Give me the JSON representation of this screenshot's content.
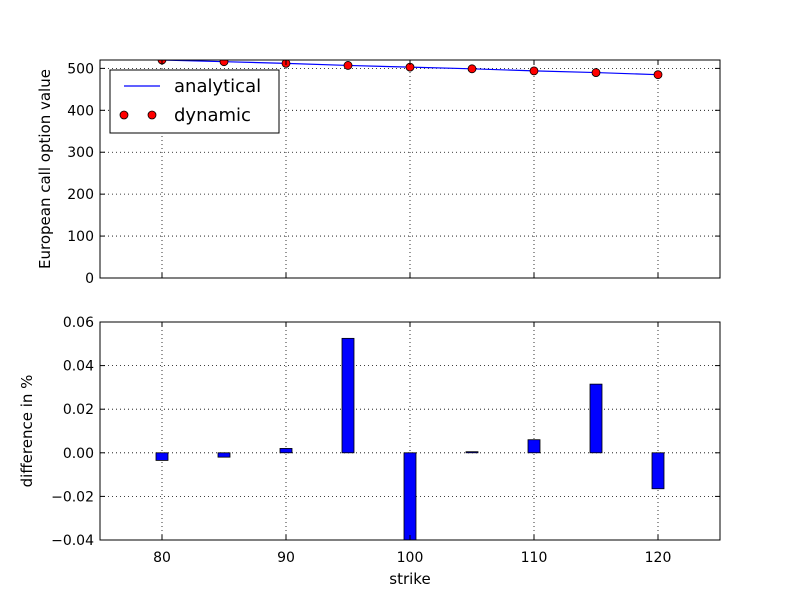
{
  "chart_data": [
    {
      "type": "line",
      "xlabel": "",
      "ylabel": "European call option value",
      "xlim": [
        75,
        125
      ],
      "ylim": [
        0,
        520
      ],
      "xticks": [
        80,
        90,
        100,
        110,
        120
      ],
      "yticks": [
        0,
        100,
        200,
        300,
        400,
        500
      ],
      "grid": true,
      "legend_position": "upper-left",
      "x": [
        80,
        85,
        90,
        95,
        100,
        105,
        110,
        115,
        120
      ],
      "series": [
        {
          "name": "analytical",
          "style": "line",
          "color": "#0000ff",
          "values": [
            520,
            516,
            512,
            507,
            503,
            499,
            494,
            490,
            485
          ]
        },
        {
          "name": "dynamic",
          "style": "markers",
          "color": "#ff0000",
          "values": [
            520,
            516,
            512,
            507,
            503,
            499,
            494,
            490,
            485
          ]
        }
      ]
    },
    {
      "type": "bar",
      "xlabel": "strike",
      "ylabel": "difference in %",
      "xlim": [
        75,
        125
      ],
      "ylim": [
        -0.04,
        0.06
      ],
      "xticks": [
        80,
        90,
        100,
        110,
        120
      ],
      "yticks": [
        -0.04,
        -0.02,
        0.0,
        0.02,
        0.04,
        0.06
      ],
      "ytick_labels": [
        "−0.04",
        "−0.02",
        "0.00",
        "0.02",
        "0.04",
        "0.06"
      ],
      "grid": true,
      "bar_color": "#0000ff",
      "x": [
        80,
        85,
        90,
        95,
        100,
        105,
        110,
        115,
        120
      ],
      "values": [
        -0.0035,
        -0.002,
        0.002,
        0.0525,
        -0.045,
        0.0005,
        0.006,
        0.0315,
        -0.0165
      ]
    }
  ]
}
